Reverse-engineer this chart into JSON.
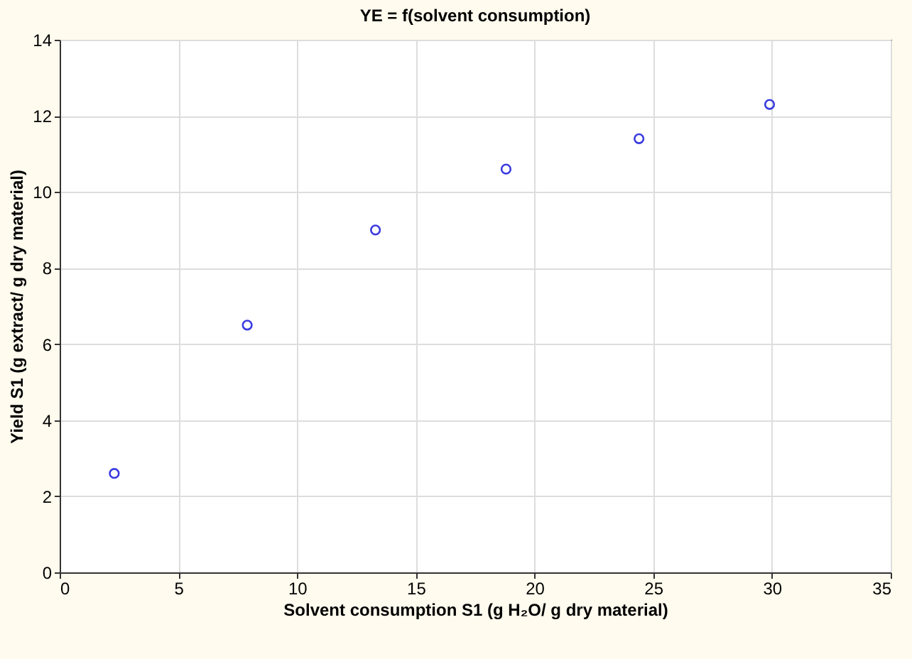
{
  "chart_data": {
    "type": "scatter",
    "title": "YE = f(solvent consumption)",
    "xlabel": "Solvent consumption S1 (g H₂O/ g dry material)",
    "ylabel": "Yield S1 (g extract/ g dry material)",
    "x": [
      2.3,
      7.9,
      13.3,
      18.8,
      24.4,
      29.9
    ],
    "series": [
      {
        "color": "#3a3ae0",
        "values": [
          2.6,
          6.5,
          9.0,
          10.6,
          11.4,
          12.3
        ]
      }
    ],
    "xlim": [
      0,
      35
    ],
    "xticks": [
      0,
      5,
      10,
      15,
      20,
      25,
      30,
      35
    ],
    "ylim": [
      0,
      14
    ],
    "yticks": [
      0,
      2,
      4,
      6,
      8,
      10,
      12,
      14
    ],
    "grid": true,
    "marker": "circle"
  }
}
